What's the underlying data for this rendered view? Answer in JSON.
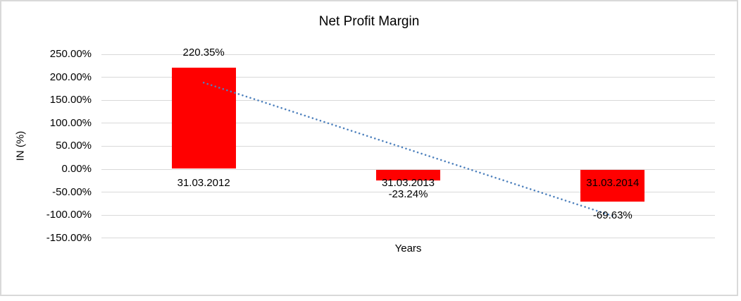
{
  "chart_data": {
    "type": "bar",
    "title": "Net Profit Margin",
    "xlabel": "Years",
    "ylabel": "IN (%)",
    "categories": [
      "31.03.2012",
      "31.03.2013",
      "31.03.2014"
    ],
    "series": [
      {
        "name": "Net Profit Margin",
        "values": [
          220.35,
          -23.24,
          -69.63
        ]
      }
    ],
    "values": [
      220.35,
      -23.24,
      -69.63
    ],
    "data_labels": [
      "220.35%",
      "-23.24%",
      "-69.63%"
    ],
    "y_tick_values": [
      250,
      200,
      150,
      100,
      50,
      0,
      -50,
      -100,
      -150
    ],
    "y_tick_labels": [
      "250.00%",
      "200.00%",
      "150.00%",
      "100.00%",
      "50.00%",
      "0.00%",
      "-50.00%",
      "-100.00%",
      "-150.00%"
    ],
    "ylim": [
      -150,
      250
    ],
    "grid": true,
    "legend": "none",
    "bar_color": "#ff0000",
    "gridline_color": "#d9d9d9",
    "trendline": {
      "type": "linear",
      "style": "dotted",
      "color": "#4e81bd"
    }
  }
}
